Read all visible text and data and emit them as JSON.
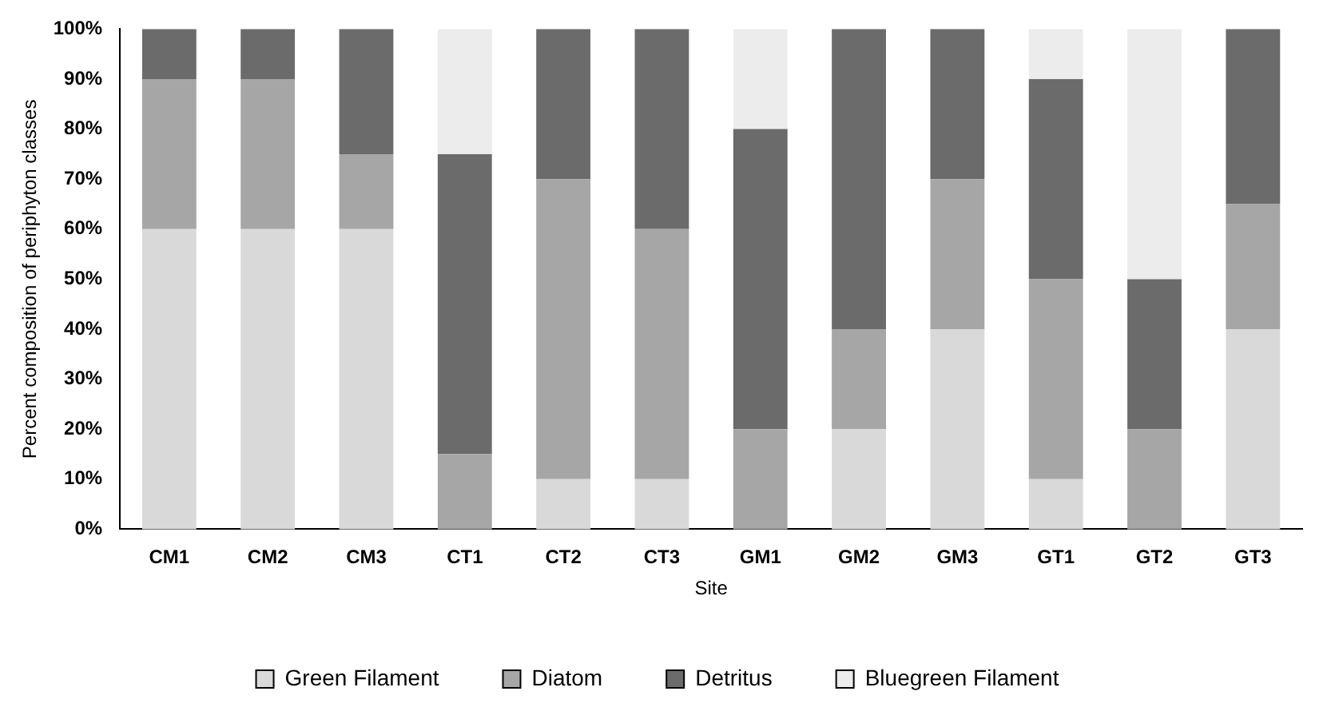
{
  "chart_data": {
    "type": "bar",
    "stacked": true,
    "xlabel": "Site",
    "ylabel": "Percent composition of periphyton classes",
    "categories": [
      "CM1",
      "CM2",
      "CM3",
      "CT1",
      "CT2",
      "CT3",
      "GM1",
      "GM2",
      "GM3",
      "GT1",
      "GT2",
      "GT3"
    ],
    "series": [
      {
        "name": "Green Filament",
        "color": "#d9d9d9",
        "values": [
          60,
          60,
          60,
          0,
          10,
          10,
          0,
          20,
          40,
          10,
          0,
          40
        ]
      },
      {
        "name": "Diatom",
        "color": "#a6a6a6",
        "values": [
          30,
          30,
          15,
          15,
          60,
          50,
          20,
          20,
          30,
          40,
          20,
          25
        ]
      },
      {
        "name": "Detritus",
        "color": "#6b6b6b",
        "values": [
          10,
          10,
          25,
          60,
          30,
          40,
          60,
          60,
          30,
          40,
          30,
          35
        ]
      },
      {
        "name": "Bluegreen Filament",
        "color": "#ececec",
        "values": [
          0,
          0,
          0,
          25,
          0,
          0,
          20,
          0,
          0,
          10,
          50,
          0
        ]
      }
    ],
    "ylim": [
      0,
      100
    ],
    "yticks": [
      {
        "value": 0,
        "label": "0%"
      },
      {
        "value": 10,
        "label": "10%"
      },
      {
        "value": 20,
        "label": "20%"
      },
      {
        "value": 30,
        "label": "30%"
      },
      {
        "value": 40,
        "label": "40%"
      },
      {
        "value": 50,
        "label": "50%"
      },
      {
        "value": 60,
        "label": "60%"
      },
      {
        "value": 70,
        "label": "70%"
      },
      {
        "value": 80,
        "label": "80%"
      },
      {
        "value": 90,
        "label": "90%"
      },
      {
        "value": 100,
        "label": "100%"
      }
    ],
    "grid": false,
    "legend": "bottom"
  }
}
